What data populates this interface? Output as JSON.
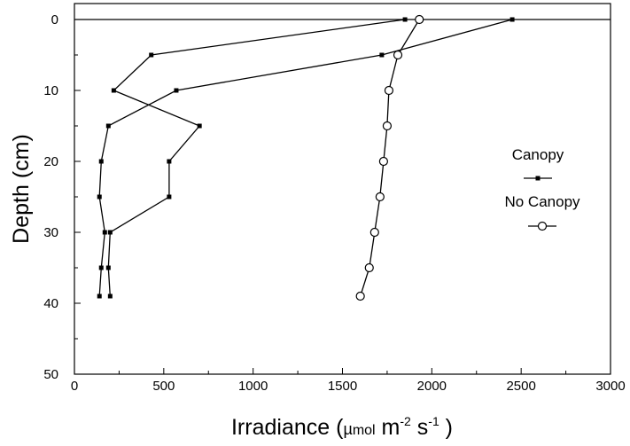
{
  "chart_data": {
    "type": "line",
    "xlabel": {
      "main": "Irradiance (",
      "unit_mu": "µ",
      "unit_mol": "mol",
      "unit_m": " m",
      "unit_m_exp": "-2",
      "unit_s": " s",
      "unit_s_exp": "-1",
      "close": " )"
    },
    "ylabel": "Depth (cm)",
    "xlim": [
      0,
      3000
    ],
    "ylim": [
      0,
      50
    ],
    "y_inverted": true,
    "x_ticks": [
      "0",
      "500",
      "1000",
      "1500",
      "2000",
      "2500",
      "3000"
    ],
    "y_ticks": [
      "0",
      "10",
      "20",
      "30",
      "40",
      "50"
    ],
    "reference_line_depth": 0,
    "legend_position": "right",
    "series": [
      {
        "name": "Canopy",
        "marker": "square",
        "lines": [
          [
            [
              1850,
              0
            ],
            [
              430,
              5
            ],
            [
              220,
              10
            ],
            [
              700,
              15
            ],
            [
              530,
              20
            ],
            [
              530,
              25
            ],
            [
              200,
              30
            ],
            [
              190,
              35
            ],
            [
              200,
              39
            ]
          ],
          [
            [
              2450,
              0
            ],
            [
              1720,
              5
            ],
            [
              570,
              10
            ],
            [
              190,
              15
            ],
            [
              150,
              20
            ],
            [
              140,
              25
            ],
            [
              170,
              30
            ],
            [
              150,
              35
            ],
            [
              140,
              39
            ]
          ]
        ]
      },
      {
        "name": "No Canopy",
        "marker": "circle",
        "lines": [
          [
            [
              1930,
              0
            ],
            [
              1810,
              5
            ],
            [
              1760,
              10
            ],
            [
              1750,
              15
            ],
            [
              1730,
              20
            ],
            [
              1710,
              25
            ],
            [
              1680,
              30
            ],
            [
              1650,
              35
            ],
            [
              1600,
              39
            ]
          ]
        ]
      }
    ]
  }
}
